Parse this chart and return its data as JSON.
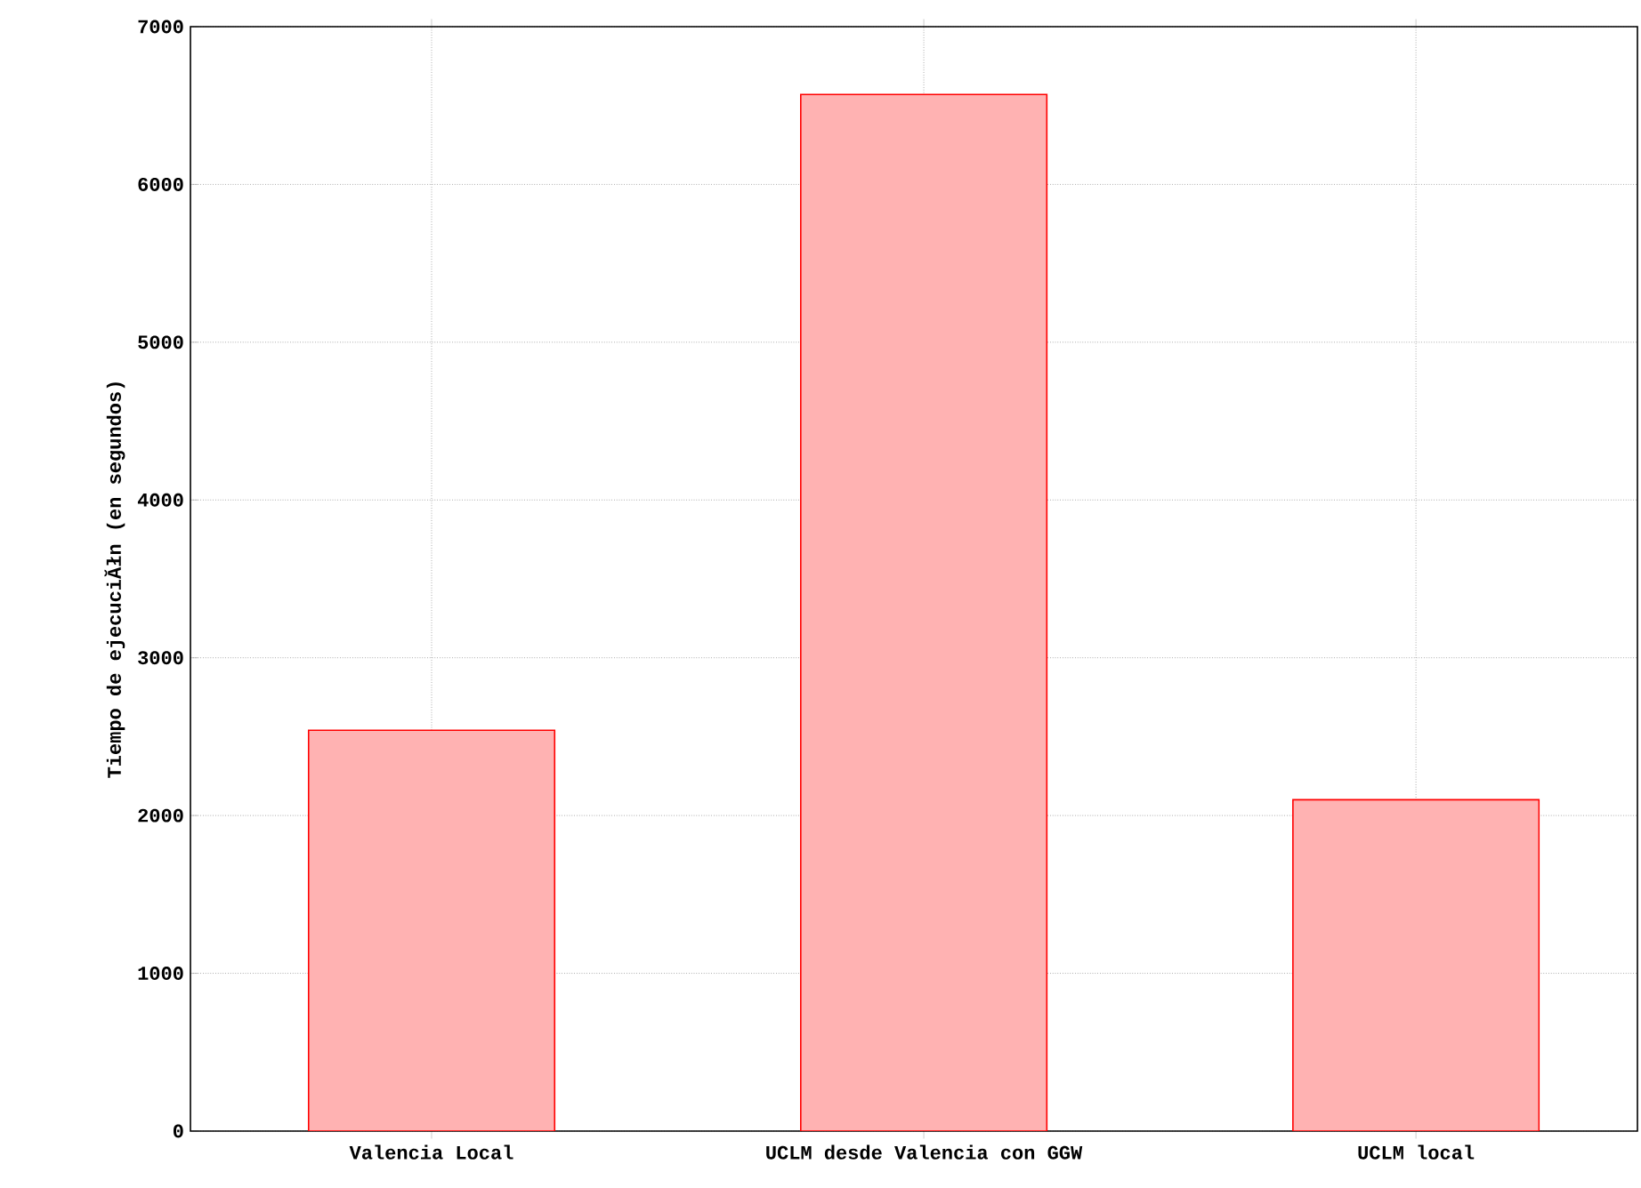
{
  "chart_data": {
    "type": "bar",
    "ylabel": "Tiempo de ejecuciĂłn (en segundos)",
    "categories": [
      "Valencia Local",
      "UCLM desde Valencia con GGW",
      "UCLM local"
    ],
    "values": [
      2540,
      6570,
      2100
    ],
    "color": "#ff0000",
    "ylim": [
      0,
      7000
    ],
    "yticks": [
      0,
      1000,
      2000,
      3000,
      4000,
      5000,
      6000,
      7000
    ],
    "grid": true
  }
}
